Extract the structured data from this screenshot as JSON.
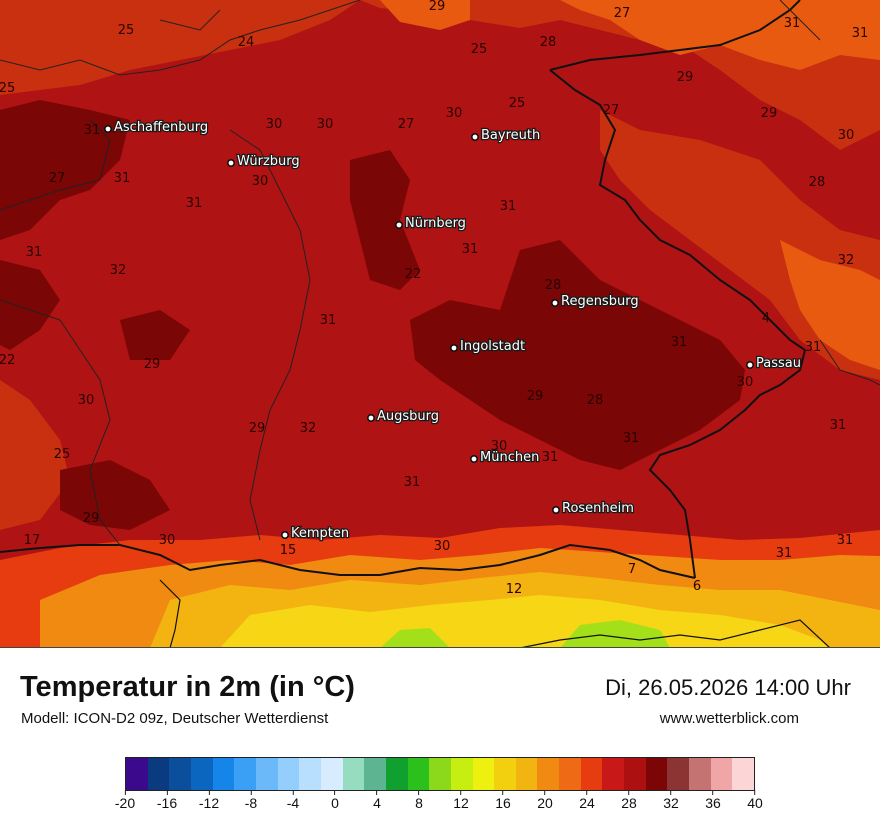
{
  "map": {
    "cities": [
      {
        "name": "Aschaffenburg",
        "icon": "city-dot-icon"
      },
      {
        "name": "Würzburg",
        "icon": "city-dot-icon"
      },
      {
        "name": "Bayreuth",
        "icon": "city-dot-icon"
      },
      {
        "name": "Nürnberg",
        "icon": "city-dot-icon"
      },
      {
        "name": "Regensburg",
        "icon": "city-dot-icon"
      },
      {
        "name": "Ingolstadt",
        "icon": "city-dot-icon"
      },
      {
        "name": "Passau",
        "icon": "city-dot-icon"
      },
      {
        "name": "Augsburg",
        "icon": "city-dot-icon"
      },
      {
        "name": "München",
        "icon": "city-dot-icon"
      },
      {
        "name": "Rosenheim",
        "icon": "city-dot-icon"
      },
      {
        "name": "Kempten",
        "icon": "city-dot-icon"
      }
    ],
    "temperature_labels": [
      "29",
      "27",
      "31",
      "31",
      "25",
      "24",
      "25",
      "28",
      "25",
      "29",
      "27",
      "29",
      "25",
      "30",
      "31",
      "30",
      "30",
      "27",
      "31",
      "30",
      "27",
      "31",
      "30",
      "31",
      "28",
      "31",
      "31",
      "32",
      "28",
      "31",
      "22",
      "32",
      "4",
      "22",
      "31",
      "31",
      "31",
      "29",
      "30",
      "29",
      "30",
      "28",
      "29",
      "32",
      "31",
      "31",
      "25",
      "30",
      "31",
      "31",
      "29",
      "30",
      "15",
      "30",
      "31",
      "31",
      "17",
      "12",
      "7",
      "6"
    ],
    "colors": {
      "base": "#b01313",
      "hot": "#7a0606",
      "warm": "#c93010",
      "orange": "#e85a10",
      "amber": "#f39a0f",
      "yellow": "#f6d615",
      "green": "#a4e01a",
      "border": "#111111"
    }
  },
  "header": {
    "title": "Temperatur in 2m (in °C)",
    "subtitle": "Modell: ICON-D2 09z, Deutscher Wetterdienst",
    "datetime": "Di, 26.05.2026 14:00 Uhr",
    "website": "www.wetterblick.com"
  },
  "legend": {
    "colors": [
      "#3b0a8c",
      "#0a3a80",
      "#0a4e9c",
      "#0b66c0",
      "#1585ea",
      "#3aa0f5",
      "#6cb9fa",
      "#94cefd",
      "#b9dffe",
      "#d7ecfe",
      "#96dcc0",
      "#5cb490",
      "#10a030",
      "#2cc01c",
      "#8cd81a",
      "#c6ee10",
      "#eef010",
      "#f2d010",
      "#f2b410",
      "#f08a10",
      "#ee6a14",
      "#e63c10",
      "#c81818",
      "#ac1010",
      "#7c0606",
      "#8c3434",
      "#c47272",
      "#f0a6a6",
      "#fcd6d6"
    ],
    "tick_labels": [
      "-20",
      "-16",
      "-12",
      "-8",
      "-4",
      "0",
      "4",
      "8",
      "12",
      "16",
      "20",
      "24",
      "28",
      "32",
      "36",
      "40"
    ]
  }
}
